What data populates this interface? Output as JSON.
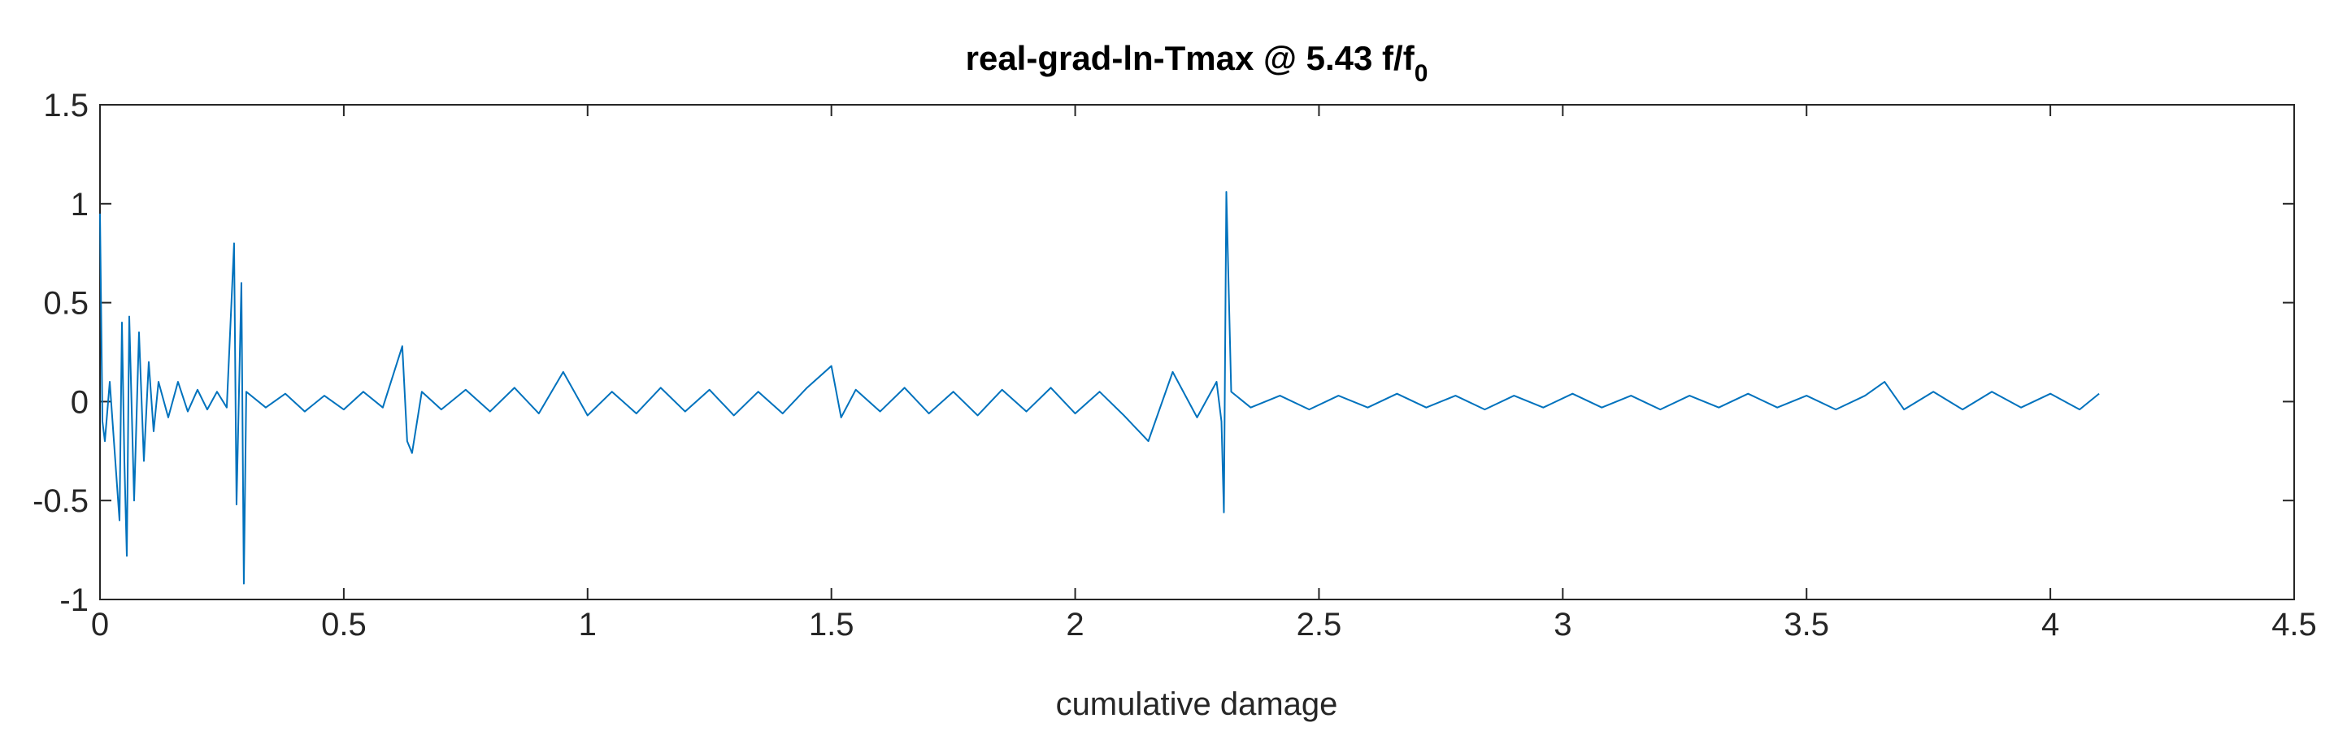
{
  "chart_data": {
    "type": "line",
    "title": {
      "text": "real-grad-ln-Tmax @ 5.43 f/f",
      "subscript": "0"
    },
    "x_label": "cumulative damage",
    "color": "#0072bd",
    "xlim": [
      0,
      4.5
    ],
    "xticks": [
      0,
      0.5,
      1,
      1.5,
      2,
      2.5,
      3,
      3.5,
      4,
      4.5
    ],
    "ylim": [
      -1,
      1.5
    ],
    "yticks": [
      -1,
      -0.5,
      0,
      0.5,
      1,
      1.5
    ],
    "grid": false,
    "x": [
      0,
      0.005,
      0.01,
      0.02,
      0.03,
      0.04,
      0.045,
      0.05,
      0.055,
      0.06,
      0.07,
      0.08,
      0.09,
      0.1,
      0.11,
      0.12,
      0.14,
      0.16,
      0.18,
      0.2,
      0.22,
      0.24,
      0.26,
      0.275,
      0.28,
      0.29,
      0.295,
      0.3,
      0.34,
      0.38,
      0.42,
      0.46,
      0.5,
      0.54,
      0.58,
      0.62,
      0.63,
      0.64,
      0.66,
      0.7,
      0.75,
      0.8,
      0.85,
      0.9,
      0.95,
      1.0,
      1.05,
      1.1,
      1.15,
      1.2,
      1.25,
      1.3,
      1.35,
      1.4,
      1.45,
      1.5,
      1.52,
      1.55,
      1.6,
      1.65,
      1.7,
      1.75,
      1.8,
      1.85,
      1.9,
      1.95,
      2.0,
      2.05,
      2.1,
      2.15,
      2.2,
      2.25,
      2.29,
      2.3,
      2.305,
      2.31,
      2.32,
      2.36,
      2.42,
      2.48,
      2.54,
      2.6,
      2.66,
      2.72,
      2.78,
      2.84,
      2.9,
      2.96,
      3.02,
      3.08,
      3.14,
      3.2,
      3.26,
      3.32,
      3.38,
      3.44,
      3.5,
      3.56,
      3.62,
      3.66,
      3.7,
      3.76,
      3.82,
      3.88,
      3.94,
      4.0,
      4.06,
      4.1
    ],
    "values": [
      0.95,
      -0.1,
      -0.2,
      0.1,
      -0.25,
      -0.6,
      0.4,
      -0.3,
      -0.78,
      0.43,
      -0.5,
      0.35,
      -0.3,
      0.2,
      -0.15,
      0.1,
      -0.08,
      0.1,
      -0.05,
      0.06,
      -0.04,
      0.05,
      -0.03,
      0.8,
      -0.52,
      0.6,
      -0.92,
      0.05,
      -0.03,
      0.04,
      -0.05,
      0.03,
      -0.04,
      0.05,
      -0.03,
      0.28,
      -0.2,
      -0.26,
      0.05,
      -0.04,
      0.06,
      -0.05,
      0.07,
      -0.06,
      0.15,
      -0.07,
      0.05,
      -0.06,
      0.07,
      -0.05,
      0.06,
      -0.07,
      0.05,
      -0.06,
      0.07,
      0.18,
      -0.08,
      0.06,
      -0.05,
      0.07,
      -0.06,
      0.05,
      -0.07,
      0.06,
      -0.05,
      0.07,
      -0.06,
      0.05,
      -0.07,
      -0.2,
      0.15,
      -0.08,
      0.1,
      -0.1,
      -0.56,
      1.06,
      0.05,
      -0.03,
      0.03,
      -0.04,
      0.03,
      -0.03,
      0.04,
      -0.03,
      0.03,
      -0.04,
      0.03,
      -0.03,
      0.04,
      -0.03,
      0.03,
      -0.04,
      0.03,
      -0.03,
      0.04,
      -0.03,
      0.03,
      -0.04,
      0.03,
      0.1,
      -0.04,
      0.05,
      -0.04,
      0.05,
      -0.03,
      0.04,
      -0.04,
      0.04
    ]
  }
}
